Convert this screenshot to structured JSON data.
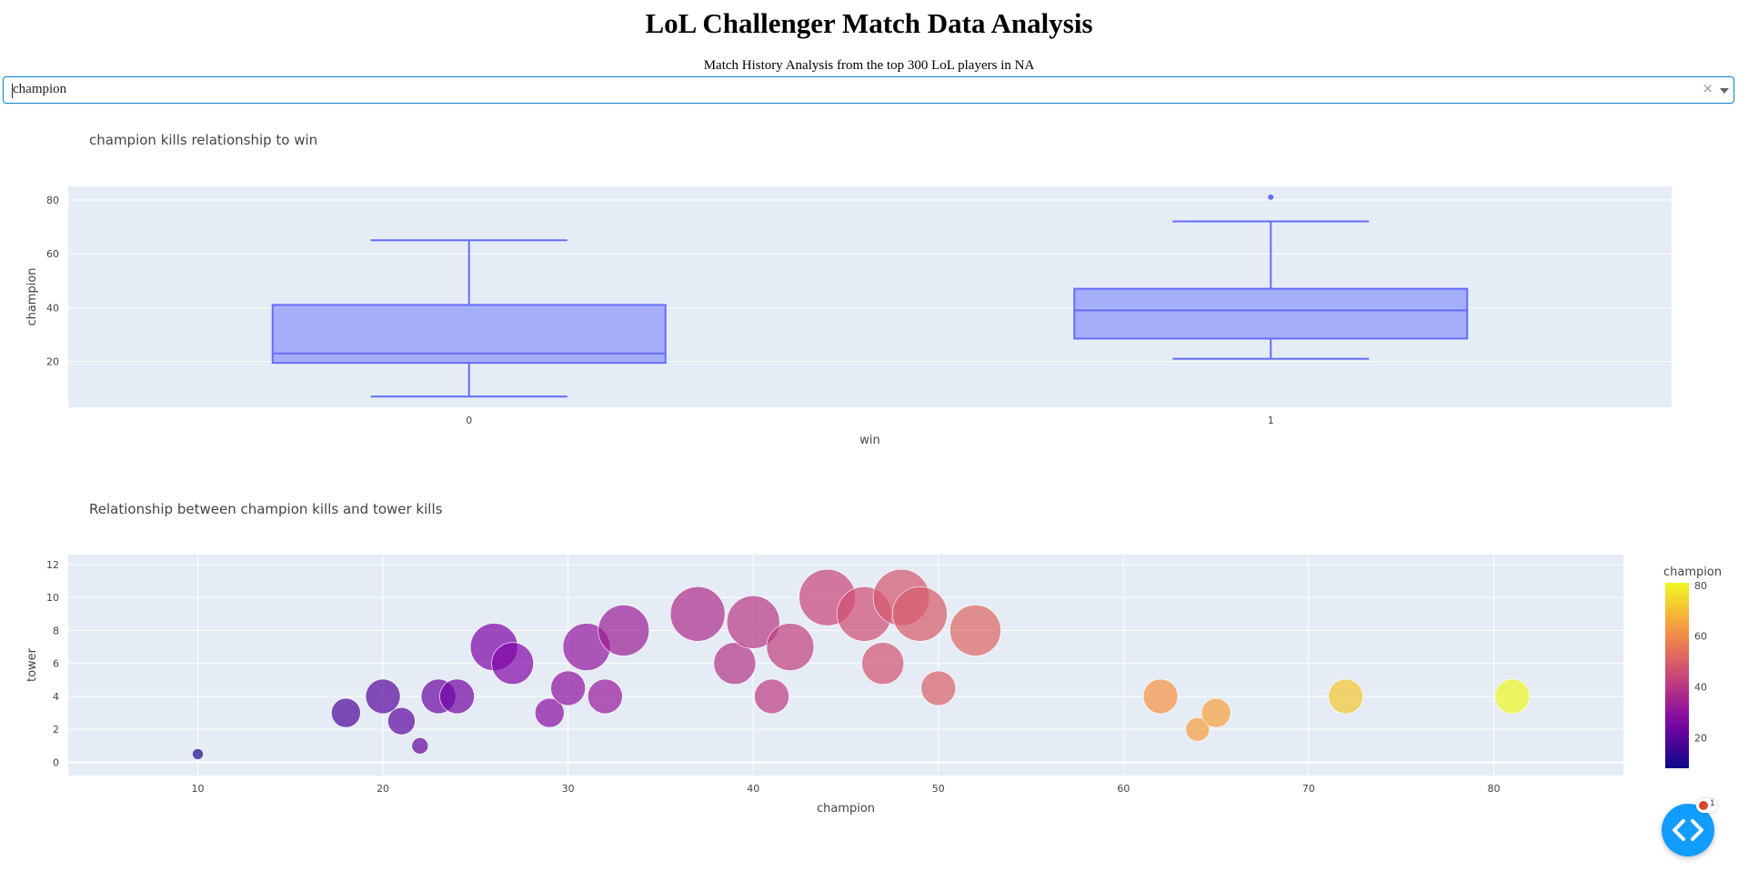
{
  "header": {
    "title": "LoL Challenger Match Data Analysis",
    "subtitle": "Match History Analysis from the top 300 LoL players in NA"
  },
  "dropdown": {
    "value": "champion",
    "clear_symbol": "×"
  },
  "charts": {
    "box": {
      "title": "champion kills relationship to win"
    },
    "bubble": {
      "title": "Relationship between champion kills and tower kills"
    }
  },
  "colors": {
    "plot_bg": "#e5ecf6",
    "box_line": "#636efa",
    "box_fill": "rgba(99,110,250,0.5)",
    "accent": "#119dff"
  },
  "chart_data": [
    {
      "type": "box",
      "title": "champion kills relationship to win",
      "xlabel": "win",
      "ylabel": "champion",
      "categories": [
        "0",
        "1"
      ],
      "boxes": [
        {
          "category": "0",
          "min": 7,
          "q1": 19.5,
          "median": 23,
          "q3": 41,
          "max": 65,
          "outliers": []
        },
        {
          "category": "1",
          "min": 21,
          "q1": 28.5,
          "median": 39,
          "q3": 47,
          "max": 72,
          "outliers": [
            81
          ]
        }
      ],
      "ylim": [
        3,
        85
      ],
      "yticks": [
        20,
        40,
        60,
        80
      ]
    },
    {
      "type": "scatter",
      "title": "Relationship between champion kills and tower kills",
      "xlabel": "champion",
      "ylabel": "tower",
      "xlim": [
        3,
        87
      ],
      "ylim": [
        -0.8,
        12.6
      ],
      "xticks": [
        10,
        20,
        30,
        40,
        50,
        60,
        70,
        80
      ],
      "yticks": [
        0,
        2,
        4,
        6,
        8,
        10,
        12
      ],
      "colorbar": {
        "title": "champion",
        "min": 8,
        "max": 81,
        "ticks": [
          20,
          40,
          60,
          80
        ]
      },
      "points": [
        {
          "x": 10,
          "y": 0.5,
          "size": 6
        },
        {
          "x": 18,
          "y": 3,
          "size": 16
        },
        {
          "x": 20,
          "y": 4,
          "size": 19
        },
        {
          "x": 21,
          "y": 2.5,
          "size": 15
        },
        {
          "x": 22,
          "y": 1,
          "size": 9
        },
        {
          "x": 23,
          "y": 4,
          "size": 19
        },
        {
          "x": 24,
          "y": 4,
          "size": 19
        },
        {
          "x": 26,
          "y": 7,
          "size": 26
        },
        {
          "x": 27,
          "y": 6,
          "size": 23
        },
        {
          "x": 29,
          "y": 3,
          "size": 16
        },
        {
          "x": 30,
          "y": 4.5,
          "size": 19
        },
        {
          "x": 31,
          "y": 7,
          "size": 26
        },
        {
          "x": 32,
          "y": 4,
          "size": 19
        },
        {
          "x": 33,
          "y": 8,
          "size": 28
        },
        {
          "x": 37,
          "y": 9,
          "size": 30
        },
        {
          "x": 39,
          "y": 6,
          "size": 23
        },
        {
          "x": 40,
          "y": 8.5,
          "size": 29
        },
        {
          "x": 41,
          "y": 4,
          "size": 19
        },
        {
          "x": 42,
          "y": 7,
          "size": 26
        },
        {
          "x": 44,
          "y": 10,
          "size": 31
        },
        {
          "x": 46,
          "y": 9,
          "size": 30
        },
        {
          "x": 47,
          "y": 6,
          "size": 23
        },
        {
          "x": 48,
          "y": 10,
          "size": 31
        },
        {
          "x": 49,
          "y": 9,
          "size": 30
        },
        {
          "x": 50,
          "y": 4.5,
          "size": 19
        },
        {
          "x": 52,
          "y": 8,
          "size": 28
        },
        {
          "x": 62,
          "y": 4,
          "size": 19
        },
        {
          "x": 64,
          "y": 2,
          "size": 13
        },
        {
          "x": 65,
          "y": 3,
          "size": 16
        },
        {
          "x": 72,
          "y": 4,
          "size": 19
        },
        {
          "x": 81,
          "y": 4,
          "size": 19
        }
      ]
    }
  ],
  "dev_tools": {
    "icon": "code-brackets-icon",
    "badge_count": "1"
  }
}
